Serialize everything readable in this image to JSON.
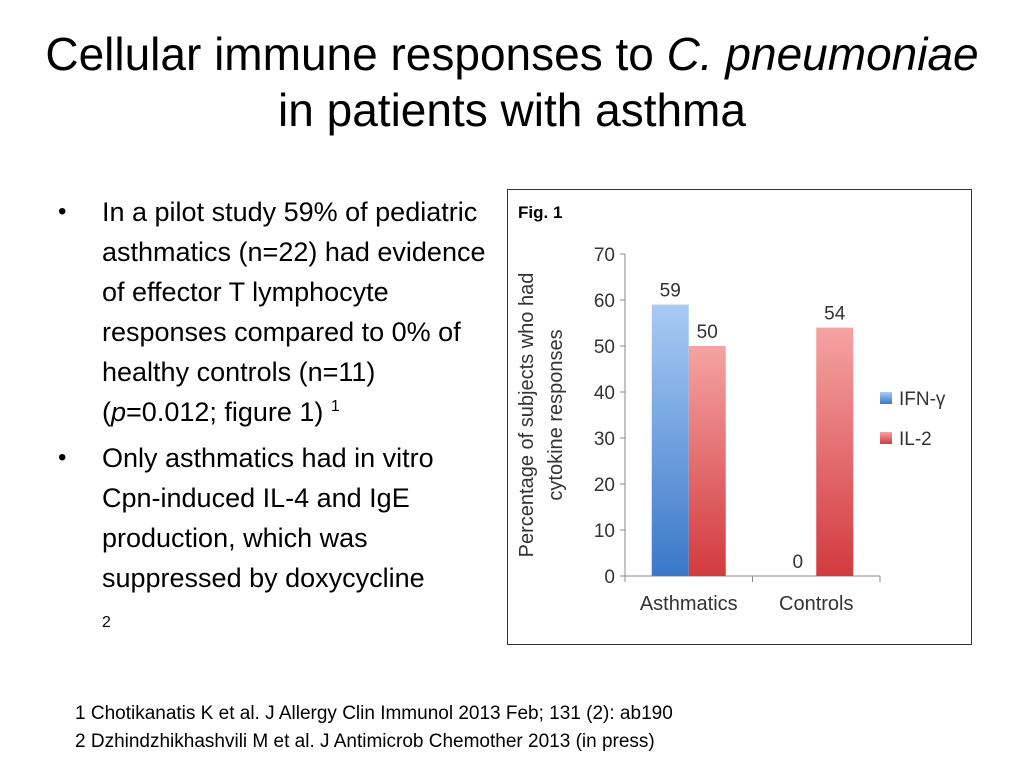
{
  "slide": {
    "title_part1": "Cellular immune responses to ",
    "title_italic1": "C. pneumoniae",
    "title_part2": " in patients with asthma"
  },
  "bullets": [
    {
      "text_before": "In a pilot study 59% of pediatric asthmatics (n=22) had evidence of effector T lymphocyte responses compared to 0% of healthy controls (n=11) (",
      "italic": "p",
      "text_after": "=0.012; figure 1) ",
      "sup": "1"
    },
    {
      "text_before": "Only asthmatics had in vitro Cpn-induced IL-4 and IgE production, which was suppressed by doxycycline",
      "sub_ref": "2"
    }
  ],
  "references": [
    "1 Chotikanatis K et al. J Allergy Clin Immunol 2013 Feb; 131 (2): ab190",
    "2 Dzhindzhikhashvili M et al. J Antimicrob Chemother 2013 (in press)"
  ],
  "chart_data": {
    "type": "bar",
    "title": "Fig. 1",
    "categories": [
      "Asthmatics",
      "Controls"
    ],
    "series": [
      {
        "name": "IFN-γ",
        "values": [
          59,
          0
        ],
        "color": "#4a86d4"
      },
      {
        "name": "IL-2",
        "values": [
          50,
          54
        ],
        "color": "#d9474b"
      }
    ],
    "data_labels": [
      [
        "59",
        "0"
      ],
      [
        "50",
        "54"
      ]
    ],
    "ylabel_line1": "Percentage of subjects who had",
    "ylabel_line2": "cytokine responses",
    "xlabel": "",
    "ylim": [
      0,
      70
    ],
    "yticks": [
      "0",
      "10",
      "20",
      "30",
      "40",
      "50",
      "60",
      "70"
    ],
    "grid": false,
    "legend_position": "right"
  }
}
